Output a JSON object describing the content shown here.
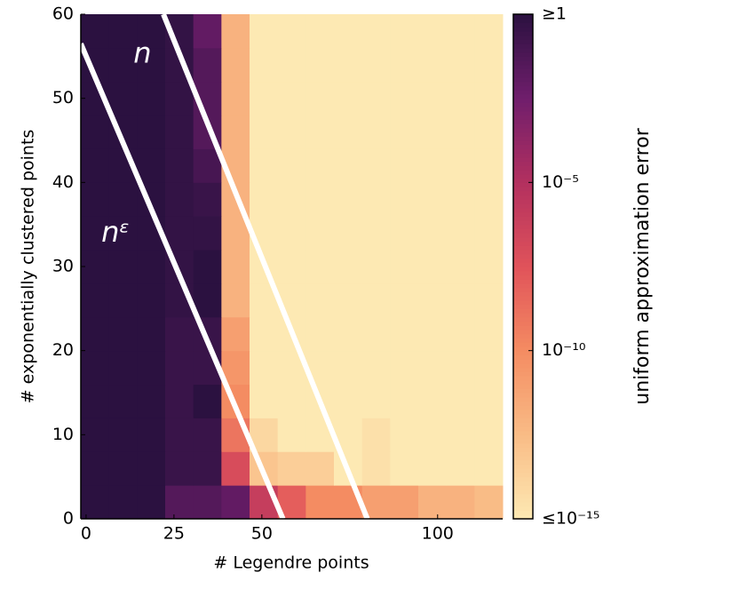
{
  "chart_data": {
    "type": "heatmap",
    "xlabel": "# Legendre points",
    "ylabel": "# exponentially clustered points",
    "colorbar_label": "uniform approximation error",
    "x": [
      2.5,
      10.5,
      18.5,
      26.5,
      34.5,
      42.5,
      50.5,
      58.5,
      66.5,
      74.5,
      82.5,
      90.5,
      98.5,
      106.5,
      114.5
    ],
    "y": [
      2,
      6,
      10,
      14,
      18,
      22,
      26,
      30,
      34,
      38,
      42,
      46,
      50,
      54,
      58
    ],
    "z": [
      [
        0,
        0,
        0,
        -1.5,
        -1.5,
        -2,
        -6,
        -8,
        -10,
        -10,
        -11,
        -11,
        -12,
        -12,
        -12.5
      ],
      [
        0,
        0,
        0,
        -0.5,
        -0.5,
        -7,
        -13,
        -13.5,
        -13.5,
        -15,
        -14.5,
        -15,
        -15,
        -15,
        -15
      ],
      [
        0,
        0,
        0,
        -0.5,
        -0.5,
        -9,
        -14,
        -15,
        -15,
        -15,
        -14.5,
        -15,
        -15,
        -15,
        -15
      ],
      [
        0,
        0,
        0,
        -0.5,
        0,
        -10,
        -15,
        -15,
        -15,
        -15,
        -15,
        -15,
        -15,
        -15,
        -15
      ],
      [
        0,
        0,
        0,
        -0.5,
        -0.5,
        -10.5,
        -15,
        -15,
        -15,
        -15,
        -15,
        -15,
        -15,
        -15,
        -15
      ],
      [
        0,
        0,
        0,
        -0.5,
        -0.5,
        -11,
        -15,
        -15,
        -15,
        -15,
        -15,
        -15,
        -15,
        -15,
        -15
      ],
      [
        0,
        0,
        0,
        -0.3,
        0,
        -12,
        -15,
        -15,
        -15,
        -15,
        -15,
        -15,
        -15,
        -15,
        -15
      ],
      [
        0,
        0,
        0,
        -0.3,
        0,
        -12,
        -15,
        -15,
        -15,
        -15,
        -15,
        -15,
        -15,
        -15,
        -15
      ],
      [
        0,
        0,
        0,
        -0.3,
        -0.3,
        -12,
        -15,
        -15,
        -15,
        -15,
        -15,
        -15,
        -15,
        -15,
        -15
      ],
      [
        0,
        0,
        0,
        -0.3,
        -0.5,
        -12,
        -15,
        -15,
        -15,
        -15,
        -15,
        -15,
        -15,
        -15,
        -15
      ],
      [
        0,
        0,
        0,
        -0.3,
        -1,
        -12,
        -15,
        -15,
        -15,
        -15,
        -15,
        -15,
        -15,
        -15,
        -15
      ],
      [
        0,
        0,
        0,
        -0.3,
        -1.5,
        -12,
        -15,
        -15,
        -15,
        -15,
        -15,
        -15,
        -15,
        -15,
        -15
      ],
      [
        0,
        0,
        0,
        -0.3,
        -1.5,
        -12,
        -15,
        -15,
        -15,
        -15,
        -15,
        -15,
        -15,
        -15,
        -15
      ],
      [
        0,
        0,
        0,
        -0.3,
        -1.5,
        -12,
        -15,
        -15,
        -15,
        -15,
        -15,
        -15,
        -15,
        -15,
        -15
      ],
      [
        0,
        0,
        0,
        -0.3,
        -2,
        -12,
        -15,
        -15,
        -15,
        -15,
        -15,
        -15,
        -15,
        -15,
        -15
      ]
    ],
    "clim": [
      -15,
      0
    ],
    "colormap": [
      "#fde9b3",
      "#f9bc86",
      "#f48c62",
      "#e0535a",
      "#b3305f",
      "#701e6c",
      "#2b1140"
    ],
    "xlim": [
      -1.5,
      118.5
    ],
    "ylim": [
      0,
      60
    ],
    "xticks": [
      0,
      25,
      50,
      100
    ],
    "yticks": [
      0,
      10,
      20,
      30,
      40,
      50,
      60
    ],
    "cticks": [
      {
        "value": 0,
        "label": "≥1"
      },
      {
        "value": -5,
        "label": "10⁻⁵"
      },
      {
        "value": -10,
        "label": "10⁻¹⁰"
      },
      {
        "value": -15,
        "label": "≤10⁻¹⁵"
      }
    ],
    "lines": [
      {
        "label": "n",
        "x": [
          22,
          80
        ],
        "y": [
          60,
          0
        ],
        "color": "#ffffff"
      },
      {
        "label": "nᵋ",
        "x": [
          -1.5,
          56
        ],
        "y": [
          56.5,
          0
        ],
        "color": "#ffffff"
      }
    ]
  }
}
